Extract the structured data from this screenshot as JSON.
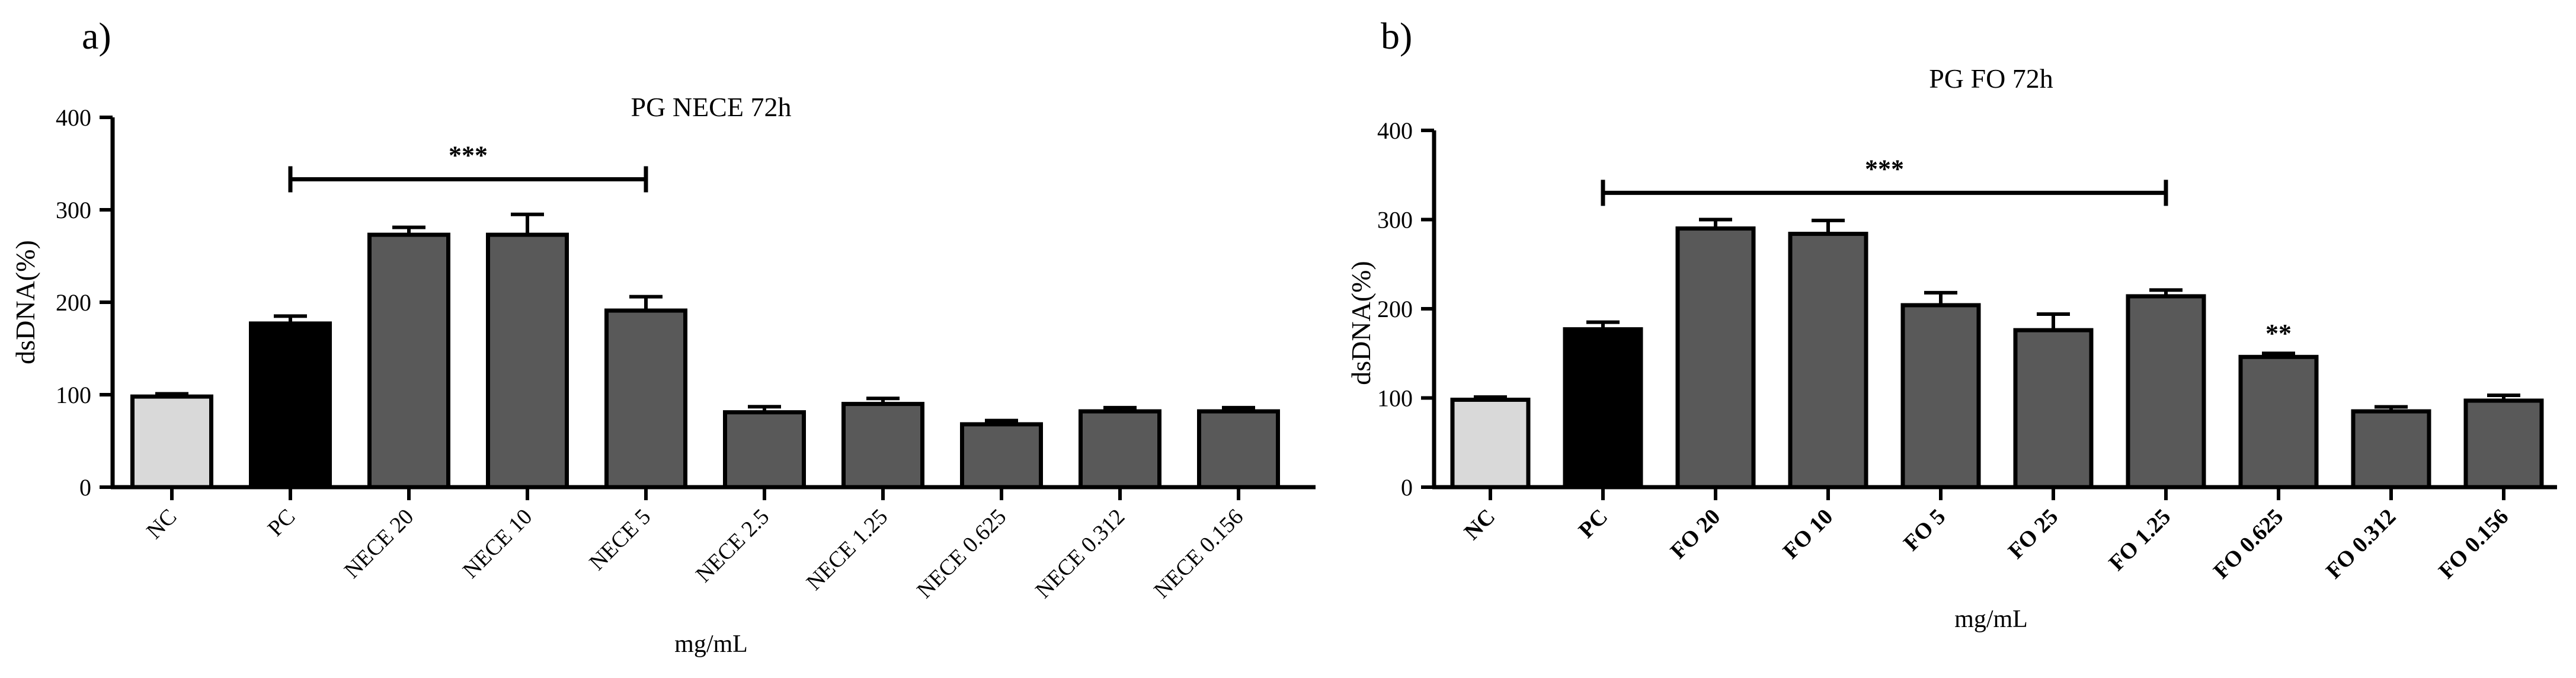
{
  "chart_data": [
    {
      "type": "bar",
      "panel": "a)",
      "title": "PG NECE 72h",
      "xlabel": "mg/mL",
      "ylabel": "dsDNA(%)",
      "ylim": [
        0,
        400
      ],
      "yticks": [
        "0",
        "100",
        "200",
        "300",
        "400"
      ],
      "categories": [
        "NC",
        "PC",
        "NECE 20",
        "NECE 10",
        "NECE 5",
        "NECE 2.5",
        "NECE 1.25",
        "NECE 0.625",
        "NECE 0.312",
        "NECE 0.156"
      ],
      "values": [
        98,
        177,
        273,
        273,
        191,
        81,
        90,
        68,
        82,
        82
      ],
      "errors": [
        3,
        8,
        8,
        22,
        15,
        6,
        6,
        4,
        4,
        4
      ],
      "colors": [
        "#d9d9d9",
        "#000000",
        "#595959",
        "#595959",
        "#595959",
        "#595959",
        "#595959",
        "#595959",
        "#595959",
        "#595959"
      ],
      "tick_bold": false,
      "grid": false,
      "significance": [
        {
          "label": "***",
          "from": 1,
          "to": 4,
          "y": 333
        }
      ]
    },
    {
      "type": "bar",
      "panel": "b)",
      "title": "PG FO 72h",
      "xlabel": "mg/mL",
      "ylabel": "dsDNA(%)",
      "ylim": [
        0,
        400
      ],
      "yticks": [
        "0",
        "100",
        "200",
        "300",
        "400"
      ],
      "categories": [
        "NC",
        "PC",
        "FO 20",
        "FO 10",
        "FO 5",
        "FO 25",
        "FO 1.25",
        "FO 0.625",
        "FO 0.312",
        "FO 0.156"
      ],
      "values": [
        98,
        177,
        290,
        284,
        204,
        176,
        214,
        146,
        85,
        97
      ],
      "errors": [
        3,
        8,
        10,
        15,
        14,
        18,
        7,
        4,
        5,
        6
      ],
      "colors": [
        "#d9d9d9",
        "#000000",
        "#595959",
        "#595959",
        "#595959",
        "#595959",
        "#595959",
        "#595959",
        "#595959",
        "#595959"
      ],
      "tick_bold": true,
      "grid": false,
      "significance": [
        {
          "label": "***",
          "from": 1,
          "to": 6,
          "y": 330
        },
        {
          "label": "**",
          "bar": 7,
          "y": 160
        }
      ]
    }
  ]
}
